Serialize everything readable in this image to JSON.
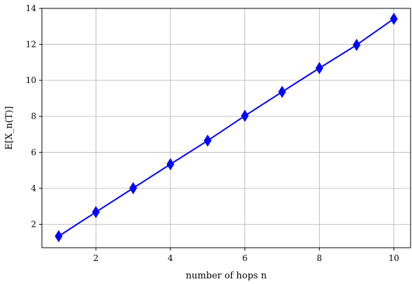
{
  "chart_data": {
    "type": "line",
    "title": "",
    "xlabel": "number of hops n",
    "ylabel": "E[X_n(T)]",
    "x": [
      1,
      2,
      3,
      4,
      5,
      6,
      7,
      8,
      9,
      10
    ],
    "series": [
      {
        "values": [
          1.34,
          2.68,
          4.01,
          5.34,
          6.65,
          8.03,
          9.36,
          10.68,
          11.97,
          13.42
        ],
        "color": "#0000ff",
        "marker": "thin-diamond"
      }
    ],
    "xlim": [
      0.55,
      10.45
    ],
    "ylim": [
      0.7,
      14.0
    ],
    "xticks": [
      2,
      4,
      6,
      8,
      10
    ],
    "yticks": [
      2,
      4,
      6,
      8,
      10,
      12,
      14
    ],
    "xtick_labels": [
      "2",
      "4",
      "6",
      "8",
      "10"
    ],
    "ytick_labels": [
      "2",
      "4",
      "6",
      "8",
      "10",
      "12",
      "14"
    ],
    "grid": true,
    "legend": "none"
  }
}
